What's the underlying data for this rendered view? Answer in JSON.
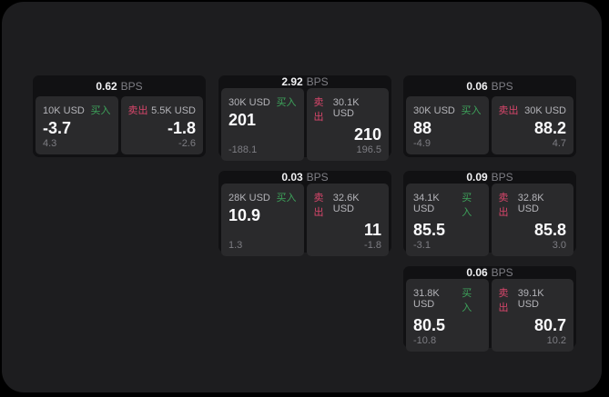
{
  "page": {
    "bps_unit": "BPS",
    "buy_label": "买入",
    "sell_label": "卖出"
  },
  "colors": {
    "background": "#000000",
    "panel": "#1d1d1f",
    "card": "#111113",
    "subpanel": "#2a2a2c",
    "buy_green": "#3da35b",
    "sell_red": "#d8466b"
  },
  "cards": [
    {
      "bps": "0.62",
      "buy": {
        "amount": "10K USD",
        "main": "-3.7",
        "sub": "4.3"
      },
      "sell": {
        "amount": "5.5K USD",
        "main": "-1.8",
        "sub": "-2.6"
      }
    },
    {
      "bps": "2.92",
      "buy": {
        "amount": "30K USD",
        "main": "201",
        "sub": "-188.1"
      },
      "sell": {
        "amount": "30.1K USD",
        "main": "210",
        "sub": "196.5"
      }
    },
    {
      "bps": "0.06",
      "buy": {
        "amount": "30K USD",
        "main": "88",
        "sub": "-4.9"
      },
      "sell": {
        "amount": "30K USD",
        "main": "88.2",
        "sub": "4.7"
      }
    },
    {
      "bps": "0.03",
      "buy": {
        "amount": "28K USD",
        "main": "10.9",
        "sub": "1.3"
      },
      "sell": {
        "amount": "32.6K USD",
        "main": "11",
        "sub": "-1.8"
      }
    },
    {
      "bps": "0.09",
      "buy": {
        "amount": "34.1K USD",
        "main": "85.5",
        "sub": "-3.1"
      },
      "sell": {
        "amount": "32.8K USD",
        "main": "85.8",
        "sub": "3.0"
      }
    },
    {
      "bps": "0.06",
      "buy": {
        "amount": "31.8K USD",
        "main": "80.5",
        "sub": "-10.8"
      },
      "sell": {
        "amount": "39.1K USD",
        "main": "80.7",
        "sub": "10.2"
      }
    }
  ]
}
